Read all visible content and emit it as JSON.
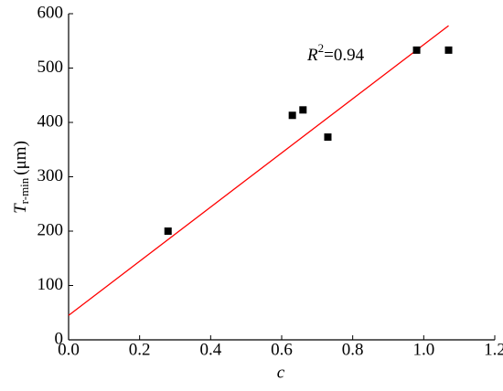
{
  "chart_data": {
    "type": "scatter",
    "x_label": "c",
    "y_label": {
      "main": "T",
      "sub": "r-min",
      "unit": "(μm)"
    },
    "annotation": {
      "main": "R",
      "sup": "2",
      "rest": "=0.94"
    },
    "series": [
      {
        "color": "#000000",
        "x": [
          0.28,
          0.63,
          0.66,
          0.73,
          0.98,
          1.07
        ],
        "values": [
          200,
          413,
          423,
          373,
          533,
          533
        ]
      }
    ],
    "fit_line": {
      "color": "#ff0000",
      "x": [
        0,
        1.07
      ],
      "values": [
        45,
        578
      ]
    },
    "xlim": [
      0,
      1.2
    ],
    "xticks": [
      {
        "value": 0,
        "label": "0.0"
      },
      0.2,
      0.4,
      0.6,
      0.8,
      {
        "value": 1,
        "label": "1.0"
      },
      1.2
    ],
    "ylim": [
      0,
      600
    ],
    "yticks": [
      0,
      100,
      200,
      300,
      400,
      500,
      600
    ]
  }
}
